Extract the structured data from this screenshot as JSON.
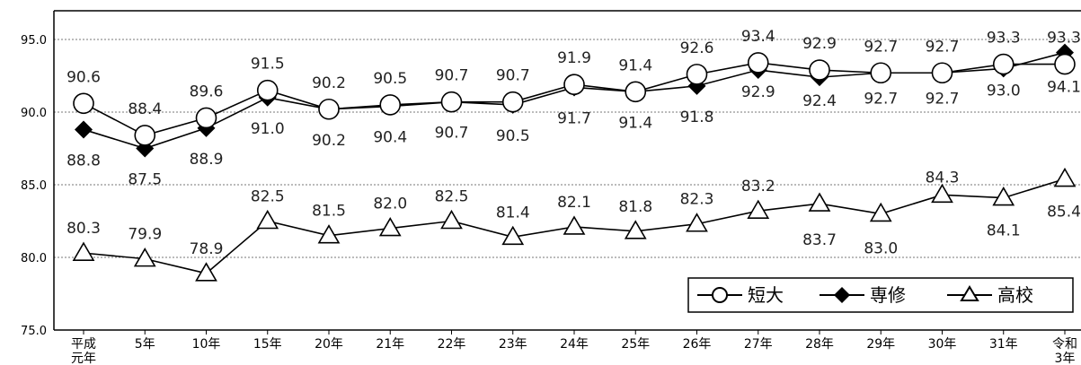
{
  "chart_data": {
    "type": "line",
    "title": "",
    "xlabel": "",
    "ylabel": "",
    "ylim": [
      75.0,
      96.0
    ],
    "yticks": [
      "75.0",
      "80.0",
      "85.0",
      "90.0",
      "95.0"
    ],
    "grid": "horizontal dashed",
    "legend_position": "bottom-right",
    "categories": [
      [
        "平成",
        "元年"
      ],
      [
        "5年"
      ],
      [
        "10年"
      ],
      [
        "15年"
      ],
      [
        "20年"
      ],
      [
        "21年"
      ],
      [
        "22年"
      ],
      [
        "23年"
      ],
      [
        "24年"
      ],
      [
        "25年"
      ],
      [
        "26年"
      ],
      [
        "27年"
      ],
      [
        "28年"
      ],
      [
        "29年"
      ],
      [
        "30年"
      ],
      [
        "31年"
      ],
      [
        "令和",
        "3年"
      ]
    ],
    "series": [
      {
        "name": "短大",
        "marker": "open-circle",
        "values": [
          90.6,
          88.4,
          89.6,
          91.5,
          90.2,
          90.5,
          90.7,
          90.7,
          91.9,
          91.4,
          92.6,
          93.4,
          92.9,
          92.7,
          92.7,
          93.3,
          93.3
        ],
        "labels": [
          "90.6",
          "88.4",
          "89.6",
          "91.5",
          "90.2",
          "90.5",
          "90.7",
          "90.7",
          "91.9",
          "91.4",
          "92.6",
          "93.4",
          "92.9",
          "92.7",
          "92.7",
          "93.3",
          "93.3"
        ]
      },
      {
        "name": "専修",
        "marker": "filled-diamond",
        "values": [
          88.8,
          87.5,
          88.9,
          91.0,
          90.2,
          90.4,
          90.7,
          90.5,
          91.7,
          91.4,
          91.8,
          92.9,
          92.4,
          92.7,
          92.7,
          93.0,
          94.1
        ],
        "labels": [
          "88.8",
          "87.5",
          "88.9",
          "91.0",
          "90.2",
          "90.4",
          "90.7",
          "90.5",
          "91.7",
          "91.4",
          "91.8",
          "92.9",
          "92.4",
          "92.7",
          "92.7",
          "93.0",
          "94.1"
        ]
      },
      {
        "name": "高校",
        "marker": "open-triangle",
        "values": [
          80.3,
          79.9,
          78.9,
          82.5,
          81.5,
          82.0,
          82.5,
          81.4,
          82.1,
          81.8,
          82.3,
          83.2,
          83.7,
          83.0,
          84.3,
          84.1,
          85.4
        ],
        "labels": [
          "80.3",
          "79.9",
          "78.9",
          "82.5",
          "81.5",
          "82.0",
          "82.5",
          "81.4",
          "82.1",
          "81.8",
          "82.3",
          "83.2",
          "83.7",
          "83.0",
          "84.3",
          "84.1",
          "85.4"
        ]
      }
    ]
  }
}
